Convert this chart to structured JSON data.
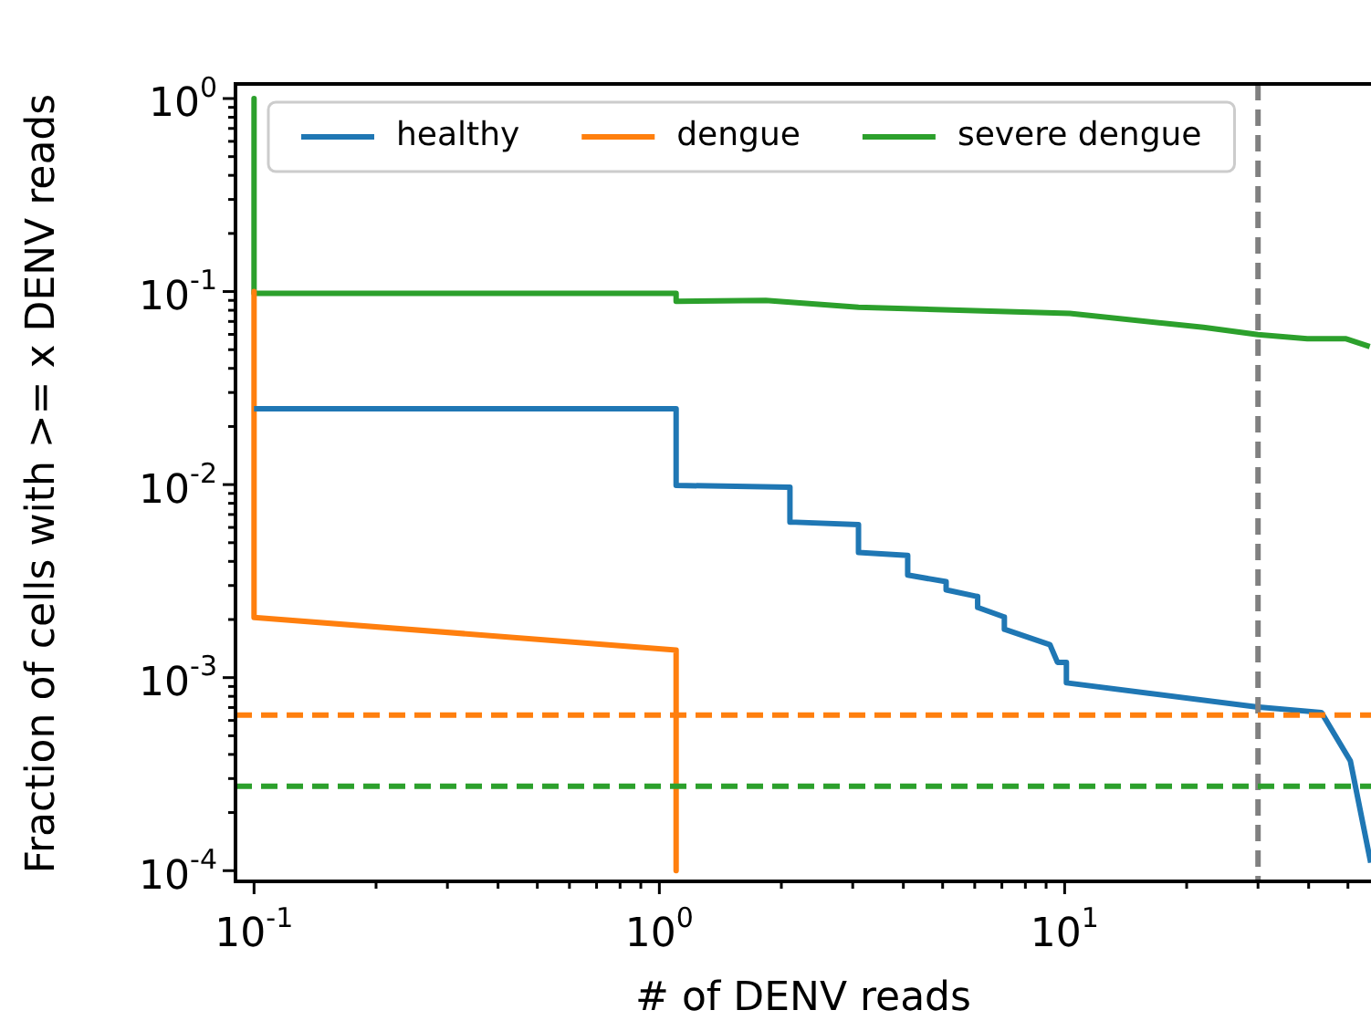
{
  "chart_data": {
    "type": "line",
    "xlabel": "# of DENV reads",
    "ylabel": "Fraction of cells with >= x DENV reads",
    "log": "xy",
    "grid": false,
    "legend": "top",
    "xlim": [
      0.09,
      57
    ],
    "ylim": [
      8.8e-05,
      1.19
    ],
    "xticks": [
      {
        "value": 0.1,
        "label": "10$^{-1}$"
      },
      {
        "value": 0.2,
        "label": null
      },
      {
        "value": 0.3,
        "label": null
      },
      {
        "value": 0.4,
        "label": null
      },
      {
        "value": 0.5,
        "label": null
      },
      {
        "value": 0.6,
        "label": null
      },
      {
        "value": 0.7,
        "label": null
      },
      {
        "value": 0.8,
        "label": null
      },
      {
        "value": 0.9,
        "label": null
      },
      {
        "value": 1,
        "label": "10$^{0}$"
      },
      {
        "value": 2,
        "label": null
      },
      {
        "value": 3,
        "label": null
      },
      {
        "value": 4,
        "label": null
      },
      {
        "value": 5,
        "label": null
      },
      {
        "value": 6,
        "label": null
      },
      {
        "value": 7,
        "label": null
      },
      {
        "value": 8,
        "label": null
      },
      {
        "value": 9,
        "label": null
      },
      {
        "value": 10,
        "label": "10$^{1}$"
      },
      {
        "value": 20,
        "label": null
      },
      {
        "value": 30,
        "label": null
      },
      {
        "value": 40,
        "label": null
      },
      {
        "value": 50,
        "label": null
      }
    ],
    "yticks": [
      {
        "value": 0.0001,
        "label": "10$^{-4}$"
      },
      {
        "value": 0.0002,
        "label": null
      },
      {
        "value": 0.0003,
        "label": null
      },
      {
        "value": 0.0004,
        "label": null
      },
      {
        "value": 0.0005,
        "label": null
      },
      {
        "value": 0.0006,
        "label": null
      },
      {
        "value": 0.0007,
        "label": null
      },
      {
        "value": 0.0008,
        "label": null
      },
      {
        "value": 0.0009,
        "label": null
      },
      {
        "value": 0.001,
        "label": "10$^{-3}$"
      },
      {
        "value": 0.002,
        "label": null
      },
      {
        "value": 0.003,
        "label": null
      },
      {
        "value": 0.004,
        "label": null
      },
      {
        "value": 0.005,
        "label": null
      },
      {
        "value": 0.006,
        "label": null
      },
      {
        "value": 0.007,
        "label": null
      },
      {
        "value": 0.008,
        "label": null
      },
      {
        "value": 0.009,
        "label": null
      },
      {
        "value": 0.01,
        "label": "10$^{-2}$"
      },
      {
        "value": 0.02,
        "label": null
      },
      {
        "value": 0.03,
        "label": null
      },
      {
        "value": 0.04,
        "label": null
      },
      {
        "value": 0.05,
        "label": null
      },
      {
        "value": 0.06,
        "label": null
      },
      {
        "value": 0.07,
        "label": null
      },
      {
        "value": 0.08,
        "label": null
      },
      {
        "value": 0.09,
        "label": null
      },
      {
        "value": 0.1,
        "label": "10$^{-1}$"
      },
      {
        "value": 0.2,
        "label": null
      },
      {
        "value": 0.3,
        "label": null
      },
      {
        "value": 0.4,
        "label": null
      },
      {
        "value": 0.5,
        "label": null
      },
      {
        "value": 0.6,
        "label": null
      },
      {
        "value": 0.7,
        "label": null
      },
      {
        "value": 0.8,
        "label": null
      },
      {
        "value": 0.9,
        "label": null
      },
      {
        "value": 1,
        "label": "10$^{0}$"
      }
    ],
    "series": [
      {
        "name": "healthy",
        "color": "#1f77b4",
        "x": [
          0.1,
          1.1,
          1.1,
          2.1,
          2.1,
          3.1,
          3.1,
          4.1,
          4.1,
          5.1,
          5.1,
          6.1,
          6.1,
          7.1,
          7.1,
          9.2,
          9.6,
          10.1,
          10.1,
          29.7,
          43,
          50.7,
          56.9
        ],
        "values": [
          0.0247,
          0.0247,
          0.0099,
          0.0097,
          0.0064,
          0.0062,
          0.00445,
          0.0043,
          0.0034,
          0.00314,
          0.00285,
          0.00263,
          0.00231,
          0.00206,
          0.00178,
          0.00148,
          0.0012,
          0.0012,
          0.00094,
          0.000705,
          0.00066,
          0.00037,
          0.00011
        ]
      },
      {
        "name": "dengue",
        "color": "#ff7f0e",
        "x": [
          0.1,
          0.1,
          1.1,
          1.1
        ],
        "values": [
          0.1,
          0.00205,
          0.00139,
          0.0001
        ]
      },
      {
        "name": "severe dengue",
        "color": "#2ca02c",
        "x": [
          0.1,
          0.1,
          1.1,
          1.1,
          1.83,
          3.1,
          10.3,
          22,
          30,
          39.7,
          49.5,
          56.6
        ],
        "values": [
          1,
          0.098,
          0.098,
          0.089,
          0.09,
          0.083,
          0.077,
          0.0653,
          0.0598,
          0.0569,
          0.0569,
          0.0519
        ]
      }
    ],
    "ref_lines": [
      {
        "axis": "x",
        "value": 30,
        "color": "#808080",
        "line_style": "dashed"
      },
      {
        "axis": "y",
        "value": 0.00064,
        "color": "#ff7f0e",
        "line_style": "dashed"
      },
      {
        "axis": "y",
        "value": 0.000274,
        "color": "#2ca02c",
        "line_style": "dashed"
      }
    ]
  }
}
